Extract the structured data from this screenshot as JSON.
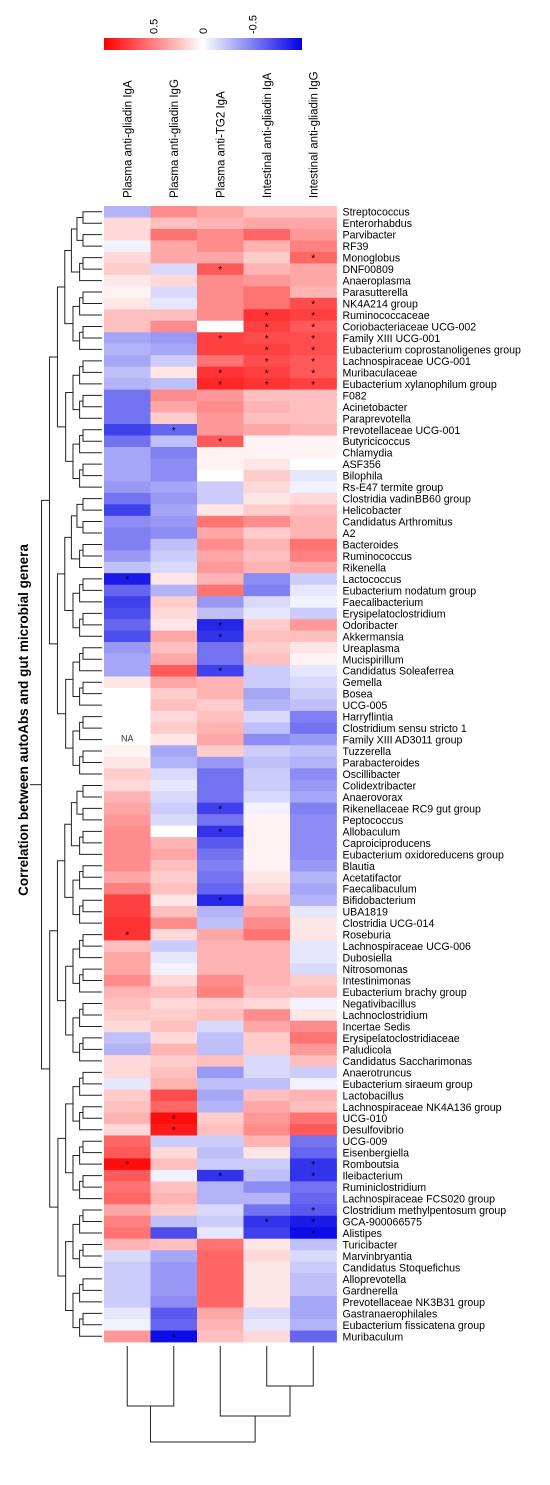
{
  "chart_data": {
    "type": "heatmap",
    "ylabel": "Correlation between autoAbs and gut microbial genera",
    "columns": [
      "Plasma anti-gliadin IgA",
      "Plasma anti-gliadin IgG",
      "Plasma anti-TG2 IgA",
      "Intestinal anti-gliadin IgA",
      "Intestinal anti-gliadin IgG"
    ],
    "rows": [
      "Streptococcus",
      "Enterorhabdus",
      "Parvibacter",
      "RF39",
      "Monoglobus",
      "DNF00809",
      "Anaeroplasma",
      "Parasutterella",
      "NK4A214 group",
      "Ruminococcaceae",
      "Coriobacteriaceae UCG-002",
      "Family XIII UCG-001",
      "Eubacterium coprostanoligenes group",
      "Lachnospiraceae UCG-001",
      "Muribaculaceae",
      "Eubacterium xylanophilum group",
      "F082",
      "Acinetobacter",
      "Paraprevotella",
      "Prevotellaceae UCG-001",
      "Butyricicoccus",
      "Chlamydia",
      "ASF356",
      "Bilophila",
      "Rs-E47 termite group",
      "Clostridia vadinBB60 group",
      "Helicobacter",
      "Candidatus Arthromitus",
      "A2",
      "Bacteroides",
      "Ruminococcus",
      "Rikenella",
      "Lactococcus",
      "Eubacterium nodatum group",
      "Faecalibacterium",
      "Erysipelatoclostridium",
      "Odoribacter",
      "Akkermansia",
      "Ureaplasma",
      "Mucispirillum",
      "Candidatus Soleaferrea",
      "Gemella",
      "Bosea",
      "UCG-005",
      "Harryflintia",
      "Clostridium sensu stricto 1",
      "Family XIII AD3011 group",
      "Tuzzerella",
      "Parabacteroides",
      "Oscillibacter",
      "Colidextribacter",
      "Anaerovorax",
      "Rikenellaceae RC9 gut group",
      "Peptococcus",
      "Allobaculum",
      "Caproiciproducens",
      "Eubacterium oxidoreducens group",
      "Blautia",
      "Acetatifactor",
      "Faecalibaculum",
      "Bifidobacterium",
      "UBA1819",
      "Clostridia UCG-014",
      "Roseburia",
      "Lachnospiraceae UCG-006",
      "Dubosiella",
      "Nitrosomonas",
      "Intestinimonas",
      "Eubacterium brachy group",
      "Negativibacillus",
      "Lachnoclostridium",
      "Incertae Sedis",
      "Erysipelatoclostridiaceae",
      "Paludicola",
      "Candidatus Saccharimonas",
      "Anaerotruncus",
      "Eubacterium siraeum group",
      "Lactobacillus",
      "Lachnospiraceae NK4A136 group",
      "UCG-010",
      "Desulfovibrio",
      "UCG-009",
      "Eisenbergiella",
      "Romboutsia",
      "Ileibacterium",
      "Ruminiclostridium",
      "Lachnospiraceae FCS020 group",
      "Clostridium methylpentosum group",
      "GCA-900066575",
      "Alistipes",
      "Turicibacter",
      "Marvinbryantia",
      "Candidatus Stoquefichus",
      "Alloprevotella",
      "Gardnerella",
      "Prevotellaceae NK3B31 group",
      "Gastranaerophilales",
      "Eubacterium fissicatena group",
      "Muribaculum"
    ],
    "values": [
      [
        -0.3,
        0.45,
        0.35,
        0.25,
        0.25
      ],
      [
        0.15,
        0.25,
        0.3,
        0.35,
        0.35
      ],
      [
        0.15,
        0.55,
        0.45,
        0.6,
        0.4
      ],
      [
        -0.05,
        0.35,
        0.45,
        0.3,
        0.5
      ],
      [
        0.15,
        0.35,
        0.35,
        0.2,
        0.6
      ],
      [
        0.2,
        -0.15,
        0.65,
        0.3,
        0.35
      ],
      [
        0.1,
        0.15,
        0.45,
        0.4,
        0.35
      ],
      [
        0.05,
        -0.15,
        0.45,
        0.55,
        0.3
      ],
      [
        0.1,
        -0.1,
        0.45,
        0.55,
        0.7
      ],
      [
        0.25,
        0.25,
        0.45,
        0.8,
        0.75
      ],
      [
        0.25,
        0.45,
        0.0,
        0.75,
        0.65
      ],
      [
        -0.35,
        -0.4,
        0.75,
        0.7,
        0.7
      ],
      [
        -0.3,
        -0.35,
        0.75,
        0.75,
        0.7
      ],
      [
        -0.35,
        -0.2,
        0.55,
        0.7,
        0.65
      ],
      [
        -0.25,
        0.1,
        0.8,
        0.75,
        0.65
      ],
      [
        -0.3,
        -0.25,
        0.85,
        0.8,
        0.75
      ],
      [
        -0.55,
        0.45,
        0.4,
        0.25,
        0.25
      ],
      [
        -0.55,
        0.35,
        0.45,
        0.3,
        0.25
      ],
      [
        -0.55,
        0.2,
        0.4,
        0.25,
        0.25
      ],
      [
        -0.75,
        -0.6,
        0.4,
        0.35,
        0.3
      ],
      [
        -0.55,
        -0.25,
        0.65,
        0.05,
        0.05
      ],
      [
        -0.35,
        -0.5,
        0.05,
        0.05,
        0.05
      ],
      [
        -0.35,
        -0.45,
        0.05,
        0.1,
        0.0
      ],
      [
        -0.35,
        -0.45,
        0.0,
        0.2,
        -0.1
      ],
      [
        -0.4,
        -0.35,
        -0.2,
        0.15,
        -0.05
      ],
      [
        -0.55,
        -0.4,
        -0.2,
        0.1,
        0.15
      ],
      [
        -0.75,
        -0.35,
        0.1,
        0.2,
        0.25
      ],
      [
        -0.45,
        -0.4,
        0.55,
        0.45,
        0.3
      ],
      [
        -0.5,
        -0.45,
        0.35,
        0.2,
        0.3
      ],
      [
        -0.5,
        -0.25,
        0.45,
        0.3,
        0.55
      ],
      [
        -0.4,
        -0.2,
        0.35,
        0.25,
        0.5
      ],
      [
        -0.25,
        -0.15,
        0.4,
        0.3,
        0.35
      ],
      [
        -0.9,
        0.1,
        0.3,
        -0.45,
        -0.2
      ],
      [
        -0.6,
        -0.3,
        0.55,
        -0.5,
        -0.1
      ],
      [
        -0.75,
        0.2,
        -0.4,
        -0.15,
        -0.05
      ],
      [
        -0.7,
        0.15,
        -0.25,
        -0.1,
        -0.2
      ],
      [
        -0.6,
        0.1,
        -0.85,
        0.2,
        0.4
      ],
      [
        -0.7,
        0.35,
        -0.8,
        0.25,
        0.25
      ],
      [
        -0.4,
        0.25,
        -0.55,
        0.2,
        0.1
      ],
      [
        -0.35,
        0.35,
        -0.55,
        0.25,
        0.05
      ],
      [
        -0.35,
        0.65,
        -0.75,
        -0.2,
        -0.1
      ],
      [
        0.1,
        0.35,
        0.3,
        -0.2,
        -0.15
      ],
      [
        0.0,
        0.2,
        0.3,
        -0.35,
        -0.2
      ],
      [
        0.0,
        0.25,
        0.2,
        -0.3,
        -0.25
      ],
      [
        0.0,
        0.15,
        0.25,
        -0.15,
        -0.5
      ],
      [
        0.0,
        0.2,
        0.3,
        -0.25,
        -0.55
      ],
      [
        0.0,
        0.1,
        0.35,
        -0.45,
        -0.4
      ],
      [
        0.05,
        -0.35,
        0.2,
        -0.2,
        -0.25
      ],
      [
        0.1,
        -0.3,
        -0.4,
        -0.25,
        -0.3
      ],
      [
        0.2,
        -0.15,
        -0.55,
        -0.2,
        -0.45
      ],
      [
        0.15,
        -0.1,
        -0.55,
        -0.2,
        -0.4
      ],
      [
        0.3,
        -0.15,
        -0.55,
        -0.15,
        -0.35
      ],
      [
        0.35,
        -0.2,
        -0.75,
        -0.05,
        -0.5
      ],
      [
        0.4,
        -0.15,
        -0.55,
        0.05,
        -0.45
      ],
      [
        0.45,
        0.0,
        -0.8,
        0.05,
        -0.45
      ],
      [
        0.45,
        0.3,
        -0.65,
        0.05,
        -0.45
      ],
      [
        0.45,
        0.35,
        -0.55,
        0.05,
        -0.45
      ],
      [
        0.45,
        0.25,
        -0.5,
        0.05,
        -0.4
      ],
      [
        0.35,
        0.2,
        -0.55,
        0.1,
        -0.3
      ],
      [
        0.5,
        0.25,
        -0.6,
        0.15,
        -0.35
      ],
      [
        0.75,
        0.1,
        -0.85,
        0.25,
        -0.3
      ],
      [
        0.75,
        0.25,
        -0.3,
        0.35,
        -0.1
      ],
      [
        0.8,
        0.45,
        -0.25,
        0.45,
        0.1
      ],
      [
        0.8,
        0.15,
        0.35,
        0.55,
        0.1
      ],
      [
        0.25,
        -0.2,
        0.3,
        0.3,
        -0.1
      ],
      [
        0.35,
        -0.1,
        0.3,
        0.3,
        -0.1
      ],
      [
        0.35,
        -0.05,
        0.3,
        0.3,
        -0.15
      ],
      [
        0.45,
        0.15,
        0.45,
        0.3,
        0.2
      ],
      [
        0.3,
        0.25,
        0.5,
        0.25,
        0.25
      ],
      [
        0.25,
        0.15,
        0.2,
        0.15,
        -0.05
      ],
      [
        0.2,
        0.2,
        0.25,
        0.45,
        0.1
      ],
      [
        0.15,
        0.25,
        -0.15,
        0.35,
        0.45
      ],
      [
        -0.25,
        0.15,
        -0.25,
        0.2,
        0.55
      ],
      [
        -0.3,
        0.3,
        -0.25,
        0.2,
        0.4
      ],
      [
        0.15,
        0.2,
        0.25,
        -0.15,
        0.25
      ],
      [
        0.15,
        0.25,
        -0.4,
        -0.15,
        -0.2
      ],
      [
        -0.1,
        0.3,
        -0.25,
        -0.25,
        -0.05
      ],
      [
        0.2,
        0.7,
        -0.35,
        0.25,
        0.3
      ],
      [
        0.25,
        0.6,
        -0.3,
        0.35,
        0.25
      ],
      [
        0.3,
        0.95,
        0.2,
        0.4,
        0.55
      ],
      [
        0.15,
        0.9,
        0.25,
        0.45,
        0.65
      ],
      [
        0.6,
        -0.2,
        -0.2,
        0.3,
        -0.55
      ],
      [
        0.65,
        0.15,
        -0.25,
        0.1,
        -0.6
      ],
      [
        0.95,
        0.25,
        -0.2,
        -0.2,
        -0.8
      ],
      [
        0.65,
        -0.05,
        -0.8,
        -0.25,
        -0.8
      ],
      [
        0.55,
        0.25,
        -0.3,
        -0.45,
        -0.55
      ],
      [
        0.6,
        0.3,
        -0.3,
        -0.3,
        -0.6
      ],
      [
        0.35,
        0.2,
        -0.15,
        -0.55,
        -0.65
      ],
      [
        0.5,
        -0.25,
        -0.2,
        -0.8,
        -0.9
      ],
      [
        0.55,
        -0.7,
        -0.1,
        -0.75,
        -0.95
      ],
      [
        0.3,
        0.25,
        0.55,
        0.1,
        -0.25
      ],
      [
        -0.15,
        -0.35,
        0.6,
        0.15,
        -0.15
      ],
      [
        -0.2,
        -0.4,
        0.6,
        0.1,
        -0.2
      ],
      [
        -0.2,
        -0.4,
        0.6,
        0.1,
        -0.25
      ],
      [
        -0.2,
        -0.4,
        0.6,
        0.1,
        -0.25
      ],
      [
        -0.2,
        -0.45,
        0.6,
        0.1,
        -0.35
      ],
      [
        -0.1,
        -0.65,
        0.35,
        -0.15,
        -0.35
      ],
      [
        -0.05,
        -0.6,
        0.3,
        -0.1,
        -0.3
      ],
      [
        0.4,
        -0.95,
        0.25,
        0.15,
        -0.6
      ]
    ],
    "na_cells": [
      [
        46,
        0
      ]
    ],
    "na_label": "NA",
    "significance_marker": "*",
    "significant": [
      [
        4,
        4
      ],
      [
        5,
        2
      ],
      [
        8,
        4
      ],
      [
        9,
        3
      ],
      [
        9,
        4
      ],
      [
        10,
        3
      ],
      [
        10,
        4
      ],
      [
        11,
        2
      ],
      [
        11,
        3
      ],
      [
        11,
        4
      ],
      [
        12,
        3
      ],
      [
        12,
        4
      ],
      [
        13,
        3
      ],
      [
        13,
        4
      ],
      [
        14,
        2
      ],
      [
        14,
        3
      ],
      [
        14,
        4
      ],
      [
        15,
        2
      ],
      [
        15,
        3
      ],
      [
        15,
        4
      ],
      [
        19,
        1
      ],
      [
        20,
        2
      ],
      [
        32,
        0
      ],
      [
        36,
        2
      ],
      [
        37,
        2
      ],
      [
        40,
        2
      ],
      [
        52,
        2
      ],
      [
        54,
        2
      ],
      [
        60,
        2
      ],
      [
        63,
        0
      ],
      [
        79,
        1
      ],
      [
        80,
        1
      ],
      [
        83,
        0
      ],
      [
        83,
        4
      ],
      [
        84,
        2
      ],
      [
        84,
        4
      ],
      [
        87,
        4
      ],
      [
        88,
        3
      ],
      [
        88,
        4
      ],
      [
        89,
        4
      ],
      [
        98,
        1
      ]
    ],
    "color_scale": {
      "min": -1,
      "max": 1,
      "colors": [
        "#0000e6",
        "#ffffff",
        "#ff0000"
      ],
      "tick_labels": [
        "0.5",
        "0",
        "-0.5"
      ]
    },
    "legend_placement": "top"
  }
}
